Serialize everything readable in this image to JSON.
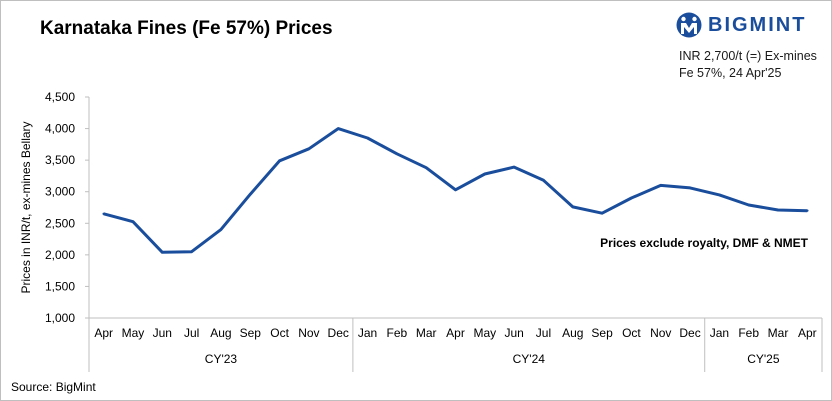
{
  "colors": {
    "line": "#1a4e9c",
    "brand": "#1a4e9c",
    "axis": "#bfbfbf"
  },
  "header": {
    "title": "Karnataka Fines (Fe 57%) Prices",
    "brand": "BIGMINT",
    "brand_icon": "bigmint-logo-icon",
    "note_line1": "INR 2,700/t (=) Ex-mines",
    "note_line2": "Fe 57%, 24 Apr'25"
  },
  "footer": {
    "source": "Source: BigMint"
  },
  "chart_data": {
    "type": "line",
    "title": "Karnataka Fines (Fe 57%) Prices",
    "ylabel": "Prices in INR/t, ex-mines Bellary",
    "xlabel": "",
    "ylim": [
      1000,
      4500
    ],
    "yticks": [
      1000,
      1500,
      2000,
      2500,
      3000,
      3500,
      4000,
      4500
    ],
    "ytick_labels": [
      "1,000",
      "1,500",
      "2,000",
      "2,500",
      "3,000",
      "3,500",
      "4,000",
      "4,500"
    ],
    "grid": false,
    "legend": "none",
    "categories": [
      "Apr",
      "May",
      "Jun",
      "Jul",
      "Aug",
      "Sep",
      "Oct",
      "Nov",
      "Dec",
      "Jan",
      "Feb",
      "Mar",
      "Apr",
      "May",
      "Jun",
      "Jul",
      "Aug",
      "Sep",
      "Oct",
      "Nov",
      "Dec",
      "Jan",
      "Feb",
      "Mar",
      "Apr"
    ],
    "groups": [
      {
        "label": "CY'23",
        "start": 0,
        "end": 8
      },
      {
        "label": "CY'24",
        "start": 9,
        "end": 20
      },
      {
        "label": "CY'25",
        "start": 21,
        "end": 24
      }
    ],
    "series": [
      {
        "values": [
          2650,
          2525,
          2040,
          2050,
          2400,
          2960,
          3490,
          3680,
          4000,
          3850,
          3600,
          3380,
          3030,
          3280,
          3390,
          3180,
          2760,
          2660,
          2900,
          3100,
          3060,
          2950,
          2790,
          2710,
          2700
        ]
      }
    ],
    "annotation": "Prices exclude royalty, DMF & NMET"
  }
}
